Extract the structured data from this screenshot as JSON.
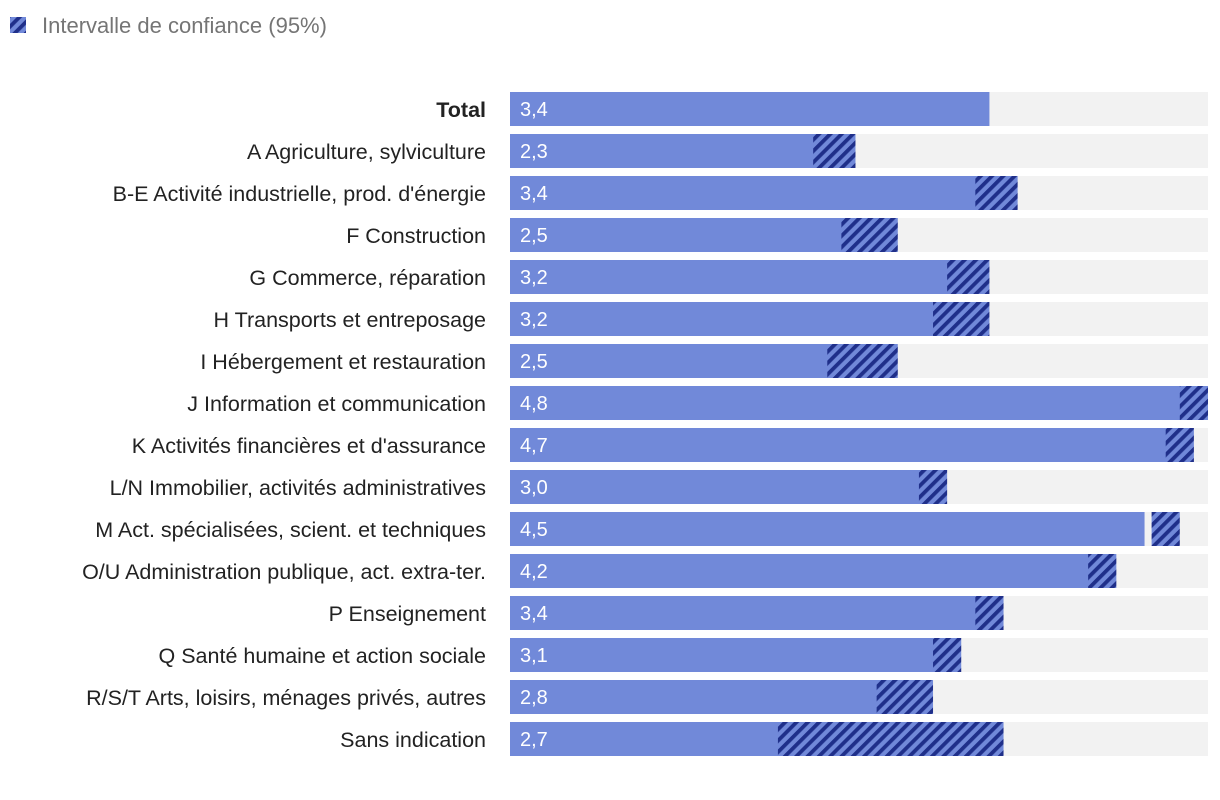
{
  "chart_data": {
    "type": "bar",
    "orientation": "horizontal",
    "legend": [
      {
        "label": "Intervalle de confiance (95%)",
        "pattern": "hatched"
      }
    ],
    "xlim": [
      0,
      4.95
    ],
    "colors": {
      "bar": "#7189d9",
      "track": "#f2f2f2",
      "hatch": "#1f2f8a",
      "label_text": "#222222",
      "value_text": "#ffffff",
      "legend_text": "#757575"
    },
    "categories": [
      "Total",
      "A Agriculture, sylviculture",
      "B-E Activité industrielle, prod. d'énergie",
      "F Construction",
      "G Commerce, réparation",
      "H Transports et entreposage",
      "I Hébergement et restauration",
      "J Information et communication",
      "K Activités financières et d'assurance",
      "L/N Immobilier, activités administratives",
      "M Act. spécialisées, scient. et techniques",
      "O/U Administration publique, act. extra-ter.",
      "P Enseignement",
      "Q Santé humaine et action sociale",
      "R/S/T Arts, loisirs, ménages privés, autres",
      "Sans indication"
    ],
    "values": [
      3.4,
      2.3,
      3.4,
      2.5,
      3.2,
      3.2,
      2.5,
      4.8,
      4.7,
      3.0,
      4.5,
      4.2,
      3.4,
      3.1,
      2.8,
      2.7
    ],
    "value_labels": [
      "3,4",
      "2,3",
      "3,4",
      "2,5",
      "3,2",
      "3,2",
      "2,5",
      "4,8",
      "4,7",
      "3,0",
      "4,5",
      "4,2",
      "3,4",
      "3,1",
      "2,8",
      "2,7"
    ],
    "ci_low": [
      null,
      2.15,
      3.3,
      2.35,
      3.1,
      3.0,
      2.25,
      4.75,
      4.65,
      2.9,
      4.55,
      4.1,
      3.3,
      3.0,
      2.6,
      1.9
    ],
    "ci_high": [
      null,
      2.45,
      3.6,
      2.75,
      3.4,
      3.4,
      2.75,
      4.95,
      4.85,
      3.1,
      4.75,
      4.3,
      3.5,
      3.2,
      3.0,
      3.5
    ],
    "bold_categories": [
      "Total"
    ]
  }
}
